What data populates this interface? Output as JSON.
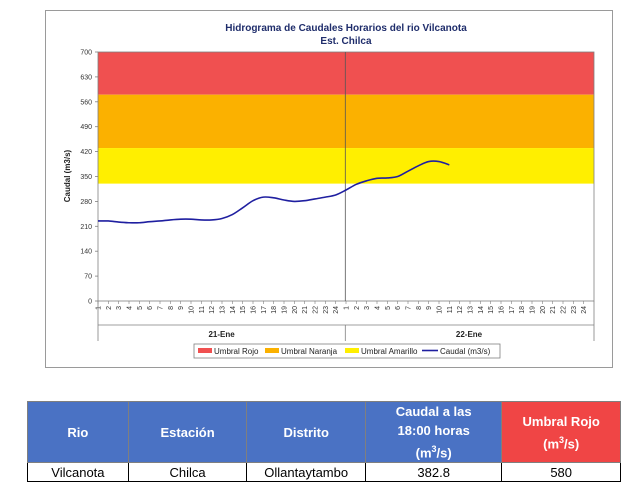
{
  "chart_data": {
    "type": "line",
    "title": "Hidrograma de Caudales Horarios del rio Vilcanota",
    "subtitle": "Est. Chilca",
    "ylabel": "Caudal  (m3/s)",
    "ylim": [
      0,
      700
    ],
    "yticks": [
      0,
      70,
      140,
      210,
      280,
      350,
      420,
      490,
      560,
      630,
      700
    ],
    "x_tick_labels": [
      "1",
      "2",
      "3",
      "4",
      "5",
      "6",
      "7",
      "8",
      "9",
      "10",
      "11",
      "12",
      "13",
      "14",
      "15",
      "16",
      "17",
      "18",
      "19",
      "20",
      "21",
      "22",
      "23",
      "24",
      "1",
      "2",
      "3",
      "4",
      "5",
      "6",
      "7",
      "8",
      "9",
      "10",
      "11",
      "12",
      "13",
      "14",
      "15",
      "16",
      "17",
      "18",
      "19",
      "20",
      "21",
      "22",
      "23",
      "24"
    ],
    "days": [
      "21-Ene",
      "22-Ene"
    ],
    "thresholds": [
      {
        "name": "Umbral Rojo",
        "from": 580,
        "to": 700,
        "color": "#f05050"
      },
      {
        "name": "Umbral Naranja",
        "from": 430,
        "to": 580,
        "color": "#fbb100"
      },
      {
        "name": "Umbral Amarillo",
        "from": 330,
        "to": 430,
        "color": "#ffef00"
      }
    ],
    "series": [
      {
        "name": "Caudal (m3/s)",
        "color": "#1f1fa0",
        "values": [
          225,
          225,
          222,
          220,
          220,
          223,
          225,
          228,
          230,
          230,
          228,
          228,
          232,
          243,
          262,
          282,
          292,
          290,
          284,
          280,
          282,
          287,
          292,
          298,
          312,
          328,
          338,
          345,
          346,
          350,
          365,
          380,
          392,
          392,
          382.8
        ]
      }
    ],
    "legend": [
      "Umbral Rojo",
      "Umbral Naranja",
      "Umbral Amarillo",
      "Caudal (m3/s)"
    ],
    "legend_position": "bottom",
    "grid": false
  },
  "table": {
    "headers": {
      "rio": "Rio",
      "estacion": "Estación",
      "distrito": "Distrito",
      "caudal_line1": "Caudal a las",
      "caudal_line2": "18:00 horas",
      "caudal_unit": "(m",
      "caudal_sup": "3",
      "caudal_unit_end": "/s)",
      "umbral_line1": "Umbral Rojo",
      "umbral_unit": "(m",
      "umbral_sup": "3",
      "umbral_unit_end": "/s)"
    },
    "row": {
      "rio": "Vilcanota",
      "estacion": "Chilca",
      "distrito": "Ollantaytambo",
      "caudal": "382.8",
      "umbral": "580"
    }
  }
}
